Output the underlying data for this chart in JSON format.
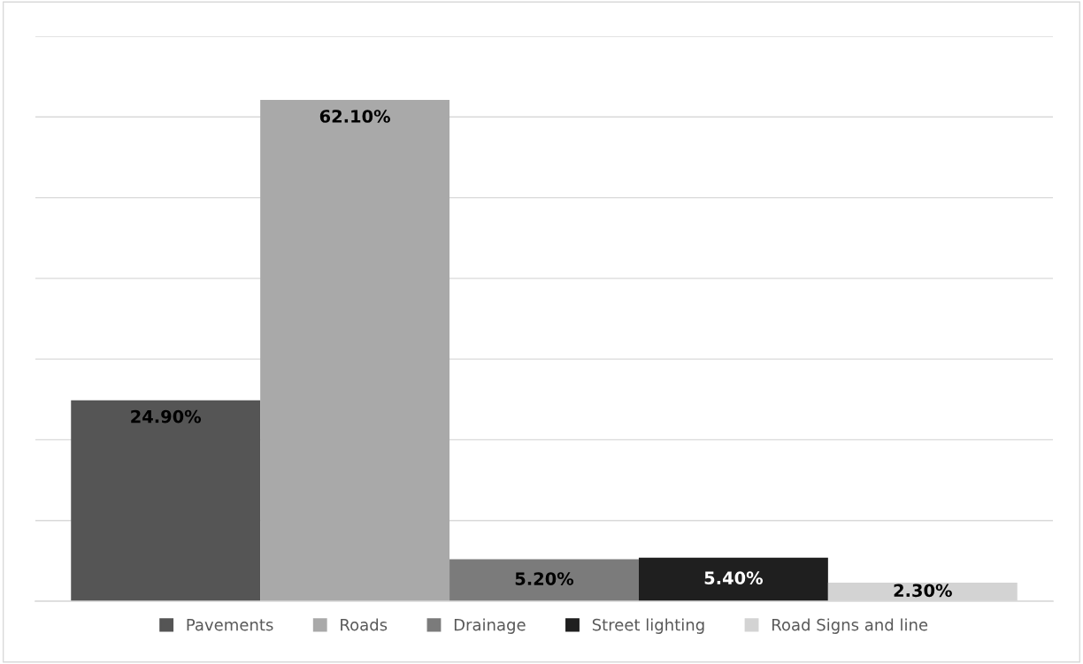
{
  "chart_data": {
    "type": "bar",
    "categories": [
      null
    ],
    "series": [
      {
        "name": "Pavements",
        "color": "#555555",
        "values": [
          24.9
        ],
        "value_labels": [
          "24.90%"
        ]
      },
      {
        "name": "Roads",
        "color": "#a9a9a9",
        "values": [
          62.1
        ],
        "value_labels": [
          "62.10%"
        ]
      },
      {
        "name": "Drainage",
        "color": "#7b7b7b",
        "values": [
          5.2
        ],
        "value_labels": [
          "5.20%"
        ]
      },
      {
        "name": "Street lighting",
        "color": "#1f1f1f",
        "values": [
          5.4
        ],
        "value_labels": [
          "5.40%"
        ]
      },
      {
        "name": "Road Signs and line",
        "color": "#d3d3d3",
        "values": [
          2.3
        ],
        "value_labels": [
          "2.30%"
        ]
      }
    ],
    "ylim": [
      0,
      70
    ],
    "yticks": [
      {
        "value": 0,
        "label": null
      },
      {
        "value": 10,
        "label": null
      },
      {
        "value": 20,
        "label": null
      },
      {
        "value": 30,
        "label": null
      },
      {
        "value": 40,
        "label": null
      },
      {
        "value": 50,
        "label": null
      },
      {
        "value": 60,
        "label": null
      },
      {
        "value": 70,
        "label": null
      }
    ],
    "grid": "y",
    "legend": "bottom"
  }
}
